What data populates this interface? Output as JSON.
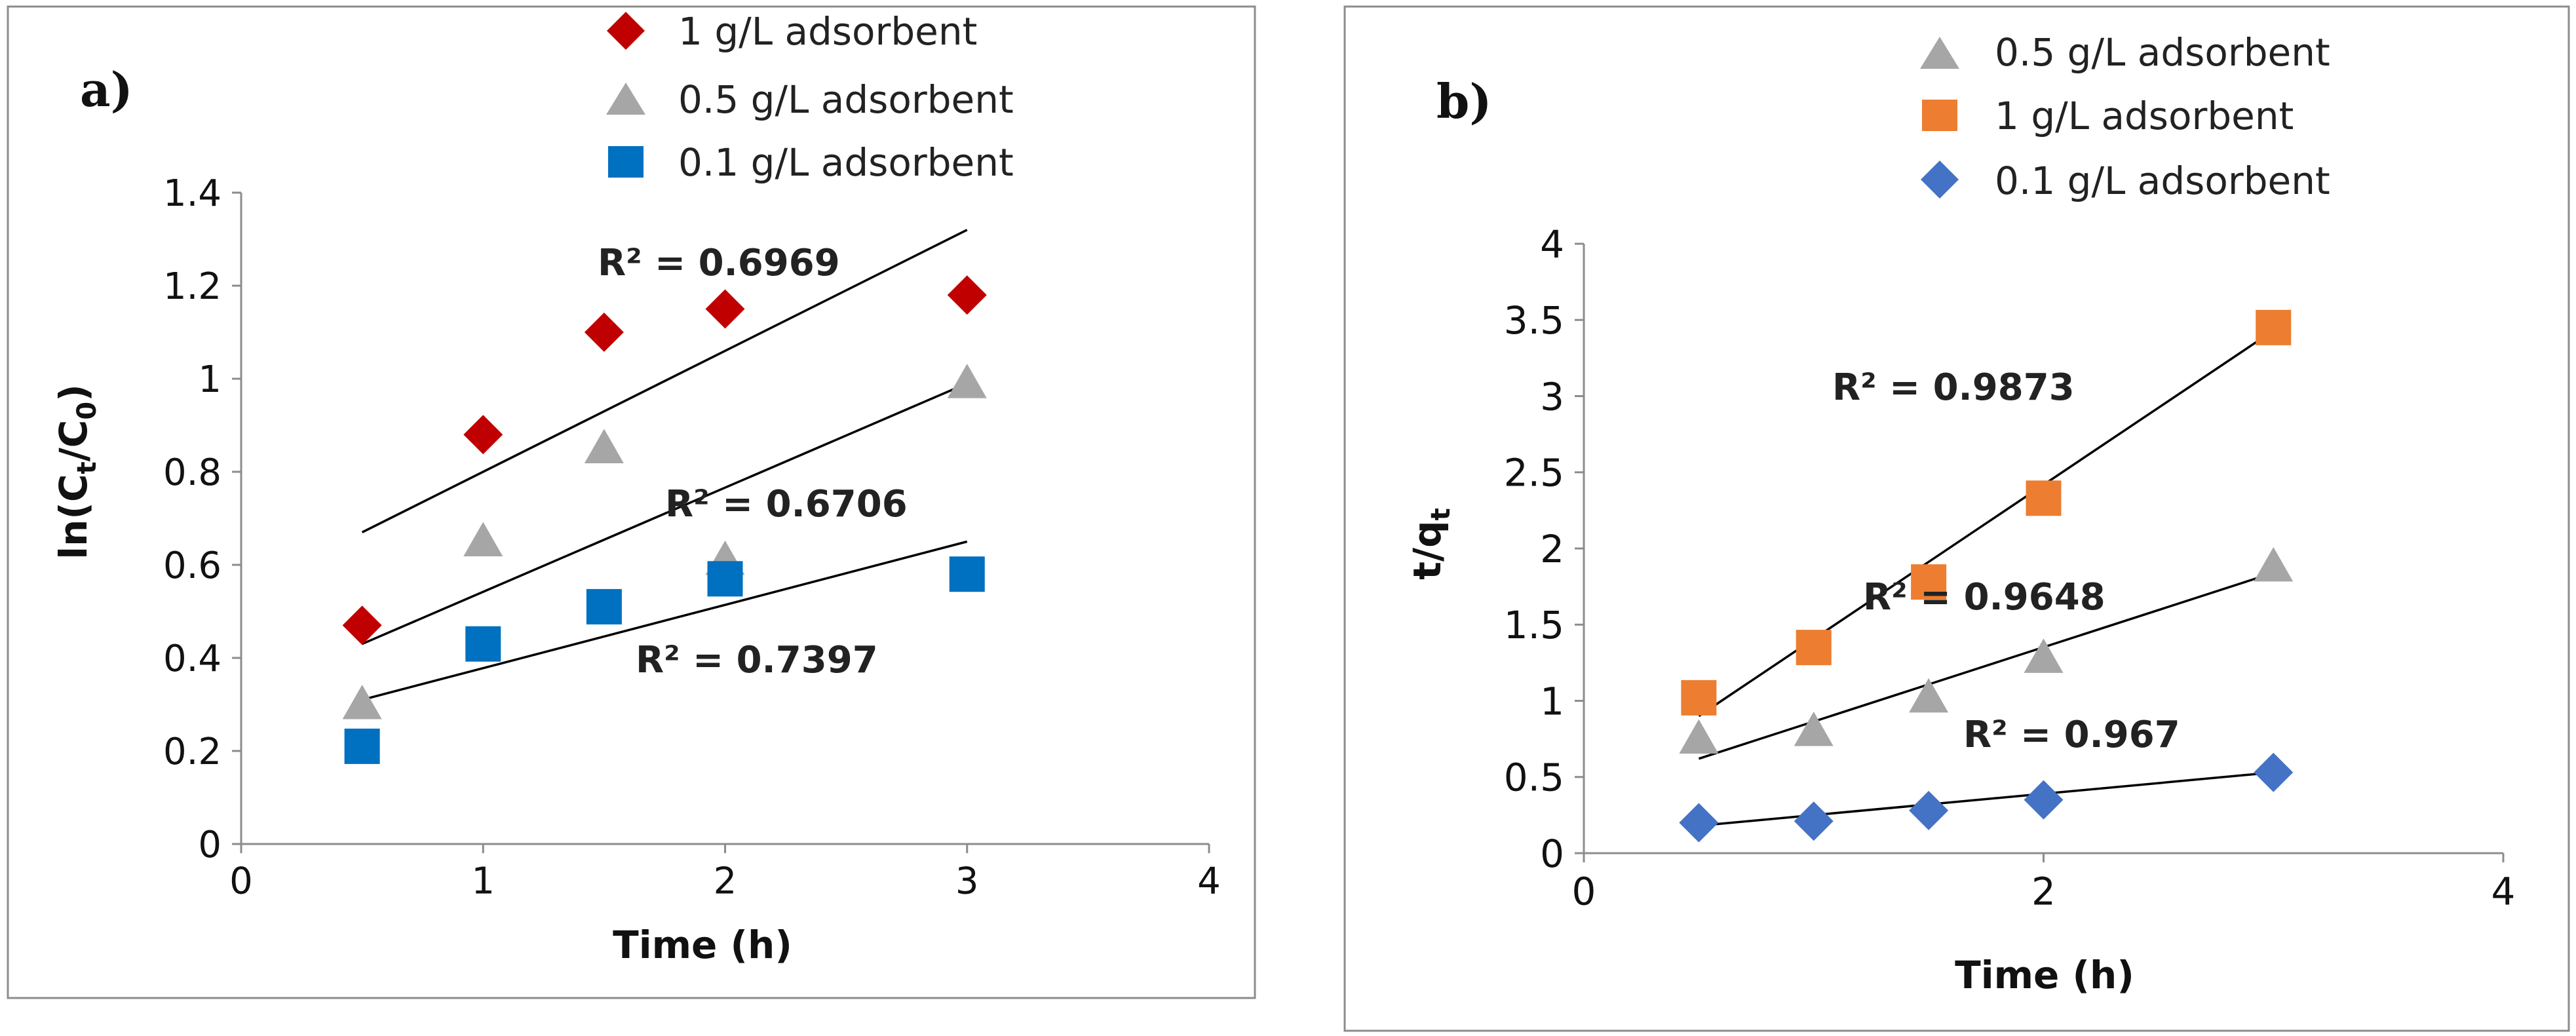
{
  "chart_data": [
    {
      "type": "scatter",
      "panel_label": "a)",
      "xlabel": "Time (h)",
      "ylabel": {
        "base": "ln(C",
        "sub1": "t",
        "mid": "/C",
        "sub2": "0",
        "end": ")"
      },
      "xlim": [
        0,
        4
      ],
      "ylim": [
        0,
        1.4
      ],
      "xticks": [
        0,
        1,
        2,
        3,
        4
      ],
      "yticks": [
        0,
        0.2,
        0.4,
        0.6,
        0.8,
        1,
        1.2,
        1.4
      ],
      "xtick_labels": [
        "0",
        "1",
        "2",
        "3",
        "4"
      ],
      "ytick_labels": [
        "0",
        "0.2",
        "0.4",
        "0.6",
        "0.8",
        "1",
        "1.2",
        "1.4"
      ],
      "series": [
        {
          "name": "1 g/L adsorbent",
          "marker": "diamond",
          "color": "#c00000",
          "x": [
            0.5,
            1,
            1.5,
            2,
            3
          ],
          "y": [
            0.47,
            0.88,
            1.1,
            1.15,
            1.18
          ],
          "trendline": {
            "x0": 0.5,
            "y0": 0.67,
            "x1": 3,
            "y1": 1.32
          },
          "r2": "R² = 0.6969"
        },
        {
          "name": "0.5 g/L adsorbent",
          "marker": "triangle",
          "color": "#a6a6a6",
          "x": [
            0.5,
            1,
            1.5,
            2,
            3
          ],
          "y": [
            0.3,
            0.65,
            0.85,
            0.61,
            0.99
          ],
          "trendline": {
            "x0": 0.5,
            "y0": 0.43,
            "x1": 3,
            "y1": 0.99
          },
          "r2": "R² = 0.6706"
        },
        {
          "name": "0.1 g/L adsorbent",
          "marker": "square",
          "color": "#0070c0",
          "x": [
            0.5,
            1,
            1.5,
            2,
            3
          ],
          "y": [
            0.21,
            0.43,
            0.51,
            0.57,
            0.58
          ],
          "trendline": {
            "x0": 0.5,
            "y0": 0.31,
            "x1": 3,
            "y1": 0.65
          },
          "r2": "R² = 0.7397"
        }
      ]
    },
    {
      "type": "scatter",
      "panel_label": "b)",
      "xlabel": "Time (h)",
      "ylabel": {
        "base": "t/q",
        "sub1": "t"
      },
      "xlim": [
        0,
        4
      ],
      "ylim": [
        0,
        4
      ],
      "xticks": [
        0,
        2,
        4
      ],
      "yticks": [
        0,
        0.5,
        1,
        1.5,
        2,
        2.5,
        3,
        3.5,
        4
      ],
      "xtick_labels": [
        "0",
        "2",
        "4"
      ],
      "ytick_labels": [
        "0",
        "0.5",
        "1",
        "1.5",
        "2",
        "2.5",
        "3",
        "3.5",
        "4"
      ],
      "series": [
        {
          "name": "0.5 g/L adsorbent",
          "marker": "triangle",
          "color": "#a6a6a6",
          "x": [
            0.5,
            1,
            1.5,
            2,
            3
          ],
          "y": [
            0.75,
            0.8,
            1.02,
            1.28,
            1.88
          ],
          "trendline": {
            "x0": 0.5,
            "y0": 0.62,
            "x1": 3,
            "y1": 1.84
          },
          "r2": "R² = 0.9648"
        },
        {
          "name": "1 g/L adsorbent",
          "marker": "square",
          "color": "#ed7d31",
          "x": [
            0.5,
            1,
            1.5,
            2,
            3
          ],
          "y": [
            1.02,
            1.35,
            1.78,
            2.33,
            3.45
          ],
          "trendline": {
            "x0": 0.5,
            "y0": 0.9,
            "x1": 3,
            "y1": 3.43
          },
          "r2": "R² = 0.9873"
        },
        {
          "name": "0.1 g/L adsorbent",
          "marker": "diamond",
          "color": "#4472c4",
          "x": [
            0.5,
            1,
            1.5,
            2,
            3
          ],
          "y": [
            0.2,
            0.21,
            0.28,
            0.35,
            0.53
          ],
          "trendline": {
            "x0": 0.5,
            "y0": 0.18,
            "x1": 3,
            "y1": 0.53
          },
          "r2": "R² = 0.967"
        }
      ]
    }
  ]
}
